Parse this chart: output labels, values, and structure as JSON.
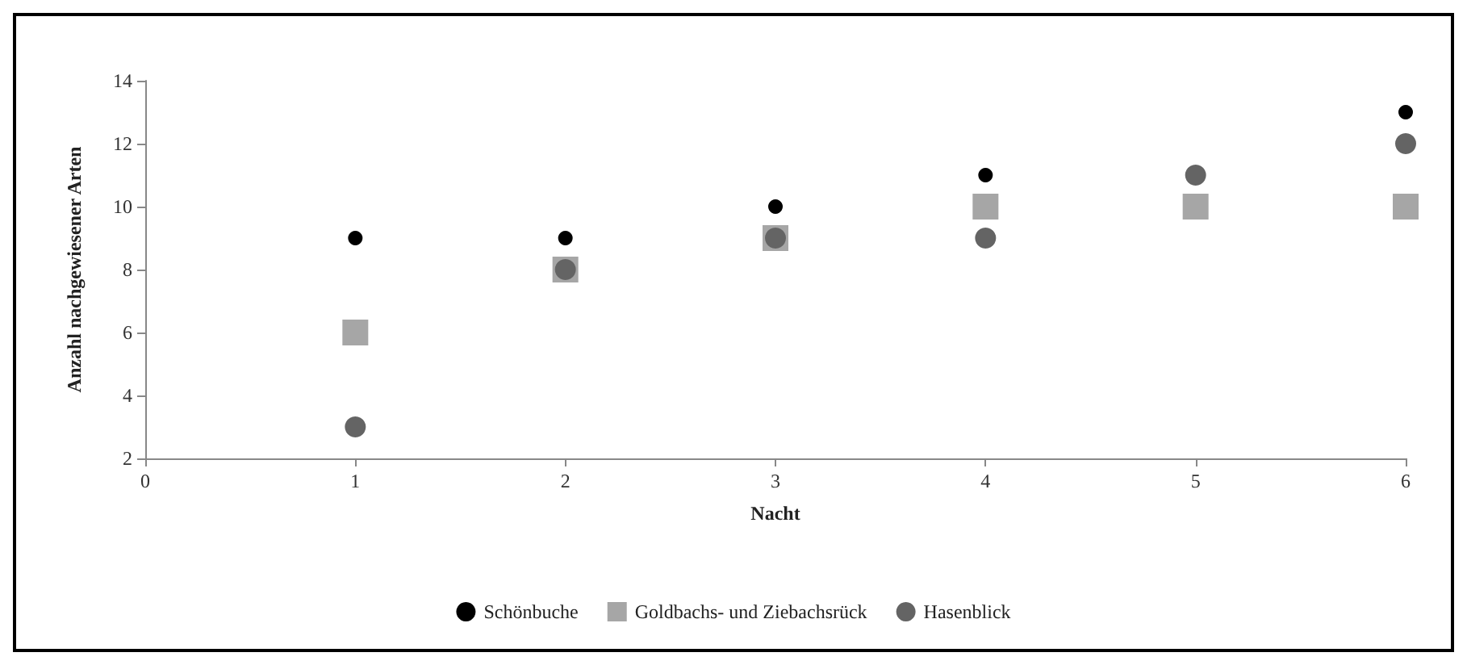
{
  "chart_data": {
    "type": "scatter",
    "xlabel": "Nacht",
    "ylabel": "Anzahl nachgewiesener Arten",
    "x": [
      1,
      2,
      3,
      4,
      5,
      6
    ],
    "series": [
      {
        "name": "Schönbuche",
        "color": "#000000",
        "marker": "circle",
        "values": [
          9,
          9,
          10,
          11,
          null,
          13
        ]
      },
      {
        "name": "Goldbachs- und Ziebachsrück",
        "color": "#a6a6a6",
        "marker": "square",
        "values": [
          6,
          8,
          9,
          10,
          10,
          10
        ]
      },
      {
        "name": "Hasenblick",
        "color": "#646464",
        "marker": "circle",
        "values": [
          3,
          8,
          9,
          9,
          11,
          12
        ]
      }
    ],
    "xlim": [
      0,
      6
    ],
    "xticks": [
      0,
      1,
      2,
      3,
      4,
      5,
      6
    ],
    "ylim": [
      2,
      14
    ],
    "yticks": [
      2,
      4,
      6,
      8,
      10,
      12,
      14
    ],
    "grid": false,
    "legend": "bottom"
  }
}
